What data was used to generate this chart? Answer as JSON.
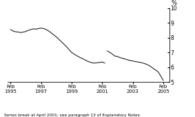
{
  "title": "",
  "ylabel": "%",
  "footnote": "Series break at April 2001; see paragraph 13 of Explanatory Notes.",
  "ylim": [
    5,
    10
  ],
  "yticks": [
    5,
    6,
    7,
    8,
    9,
    10
  ],
  "xlim": [
    1994.9,
    2005.5
  ],
  "xtick_positions": [
    1995.083,
    1997.083,
    1999.083,
    2001.083,
    2003.083,
    2005.083
  ],
  "xtick_labels": [
    "Feb\n1995",
    "Feb\n1997",
    "Feb\n1999",
    "Feb\n2001",
    "Feb\n2003",
    "Feb\n2005"
  ],
  "line_color": "#000000",
  "background_color": "#ffffff",
  "series1_x": [
    1995.083,
    1995.25,
    1995.417,
    1995.583,
    1995.75,
    1995.917,
    1996.083,
    1996.25,
    1996.417,
    1996.583,
    1996.75,
    1996.917,
    1997.083,
    1997.25,
    1997.417,
    1997.583,
    1997.75,
    1997.917,
    1998.083,
    1998.25,
    1998.417,
    1998.583,
    1998.75,
    1998.917,
    1999.083,
    1999.25,
    1999.417,
    1999.583,
    1999.75,
    1999.917,
    2000.083,
    2000.25,
    2000.417,
    2000.583,
    2000.75,
    2000.917,
    2001.083,
    2001.25
  ],
  "series1_y": [
    8.55,
    8.45,
    8.4,
    8.38,
    8.35,
    8.38,
    8.42,
    8.5,
    8.55,
    8.6,
    8.58,
    8.62,
    8.65,
    8.62,
    8.55,
    8.45,
    8.32,
    8.18,
    8.05,
    7.88,
    7.72,
    7.55,
    7.38,
    7.18,
    7.0,
    6.88,
    6.78,
    6.68,
    6.6,
    6.52,
    6.42,
    6.35,
    6.3,
    6.28,
    6.3,
    6.32,
    6.35,
    6.28
  ],
  "series2_x": [
    2001.417,
    2001.583,
    2001.75,
    2001.917,
    2002.083,
    2002.25,
    2002.417,
    2002.583,
    2002.75,
    2002.917,
    2003.083,
    2003.25,
    2003.417,
    2003.583,
    2003.75,
    2003.917,
    2004.083,
    2004.25,
    2004.417,
    2004.583,
    2004.75,
    2004.917,
    2005.083
  ],
  "series2_y": [
    7.1,
    7.0,
    6.88,
    6.75,
    6.72,
    6.65,
    6.6,
    6.55,
    6.5,
    6.45,
    6.42,
    6.38,
    6.35,
    6.32,
    6.28,
    6.22,
    6.15,
    6.05,
    5.92,
    5.8,
    5.68,
    5.4,
    5.1
  ]
}
